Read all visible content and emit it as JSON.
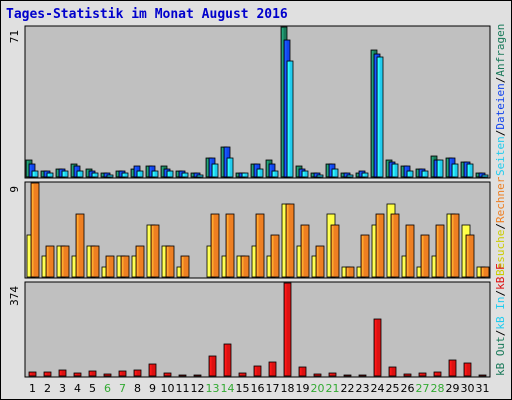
{
  "title": "Tages-Statistik im Monat August 2016",
  "colors": {
    "title": "#0000cc",
    "background": "#e0e0e0",
    "plot_background": "#c0c0c0",
    "border": "#000000",
    "weekend_day": "#33aa33",
    "weekday": "#000000",
    "anfragen": "#1a7a5a",
    "dateien": "#1144ee",
    "seiten": "#22ccee",
    "rechner": "#ee7f22",
    "besuche": "#ffff44",
    "kb": "#dd1111"
  },
  "chart_data": [
    {
      "type": "bar",
      "panel": "top",
      "y_tick_label": "71",
      "ylim": [
        0,
        71
      ],
      "legend": {
        "anfragen": "Anfragen",
        "slash1": "/",
        "dateien": "Dateien",
        "slash2": "/",
        "seiten": "Seiten"
      },
      "categories": [
        "1",
        "2",
        "3",
        "4",
        "5",
        "6",
        "7",
        "8",
        "9",
        "10",
        "11",
        "12",
        "13",
        "14",
        "15",
        "16",
        "17",
        "18",
        "19",
        "20",
        "21",
        "22",
        "23",
        "24",
        "25",
        "26",
        "27",
        "28",
        "29",
        "30",
        "31"
      ],
      "series": [
        {
          "name": "Anfragen",
          "key": "anfragen",
          "values": [
            8,
            3,
            4,
            6,
            4,
            2,
            3,
            4,
            5,
            5,
            3,
            2,
            9,
            14,
            2,
            6,
            8,
            71,
            5,
            2,
            6,
            2,
            2,
            60,
            8,
            5,
            4,
            10,
            9,
            7,
            2
          ]
        },
        {
          "name": "Dateien",
          "key": "dateien",
          "values": [
            6,
            3,
            4,
            5,
            3,
            2,
            3,
            5,
            5,
            4,
            3,
            2,
            9,
            14,
            2,
            6,
            6,
            65,
            4,
            2,
            6,
            2,
            3,
            58,
            7,
            5,
            4,
            8,
            9,
            7,
            2
          ]
        },
        {
          "name": "Seiten",
          "key": "seiten",
          "values": [
            3,
            2,
            3,
            3,
            2,
            1,
            2,
            3,
            3,
            3,
            2,
            1,
            6,
            9,
            2,
            4,
            3,
            55,
            3,
            1,
            4,
            1,
            2,
            57,
            6,
            3,
            3,
            8,
            6,
            6,
            1
          ]
        }
      ]
    },
    {
      "type": "bar",
      "panel": "middle",
      "y_tick_label": "9",
      "ylim": [
        0,
        9
      ],
      "legend": {
        "rechner": "Rechner",
        "slash1": "/",
        "besuche": "Besuche"
      },
      "categories": [
        "1",
        "2",
        "3",
        "4",
        "5",
        "6",
        "7",
        "8",
        "9",
        "10",
        "11",
        "12",
        "13",
        "14",
        "15",
        "16",
        "17",
        "18",
        "19",
        "20",
        "21",
        "22",
        "23",
        "24",
        "25",
        "26",
        "27",
        "28",
        "29",
        "30",
        "31"
      ],
      "series": [
        {
          "name": "Besuche",
          "key": "besuche",
          "values": [
            4,
            2,
            3,
            2,
            3,
            1,
            2,
            2,
            5,
            3,
            1,
            0,
            3,
            2,
            2,
            3,
            2,
            7,
            3,
            2,
            6,
            1,
            1,
            5,
            7,
            2,
            1,
            2,
            6,
            5,
            1
          ]
        },
        {
          "name": "Rechner",
          "key": "rechner",
          "values": [
            9,
            3,
            3,
            6,
            3,
            2,
            2,
            3,
            5,
            3,
            2,
            0,
            6,
            6,
            2,
            6,
            4,
            7,
            5,
            3,
            5,
            1,
            4,
            6,
            6,
            5,
            4,
            5,
            6,
            4,
            1
          ]
        }
      ]
    },
    {
      "type": "bar",
      "panel": "bottom",
      "y_tick_label": "374",
      "ylim": [
        0,
        374
      ],
      "legend": {
        "kb_f": "kB F",
        "slash1": "/",
        "kb_in": "kB In",
        "slash2": "/",
        "kb_out": "kB Out"
      },
      "categories": [
        "1",
        "2",
        "3",
        "4",
        "5",
        "6",
        "7",
        "8",
        "9",
        "10",
        "11",
        "12",
        "13",
        "14",
        "15",
        "16",
        "17",
        "18",
        "19",
        "20",
        "21",
        "22",
        "23",
        "24",
        "25",
        "26",
        "27",
        "28",
        "29",
        "30",
        "31"
      ],
      "series": [
        {
          "name": "kB F",
          "key": "kb",
          "values": [
            18,
            16,
            25,
            14,
            20,
            8,
            22,
            25,
            50,
            12,
            6,
            2,
            82,
            128,
            14,
            40,
            58,
            374,
            36,
            8,
            14,
            4,
            6,
            230,
            35,
            10,
            12,
            18,
            66,
            52,
            6
          ]
        }
      ]
    }
  ],
  "x_labels": {
    "days": [
      "1",
      "2",
      "3",
      "4",
      "5",
      "6",
      "7",
      "8",
      "9",
      "10",
      "11",
      "12",
      "13",
      "14",
      "15",
      "16",
      "17",
      "18",
      "19",
      "20",
      "21",
      "22",
      "23",
      "24",
      "25",
      "26",
      "27",
      "28",
      "29",
      "30",
      "31"
    ],
    "weekend_days": [
      "6",
      "7",
      "13",
      "14",
      "20",
      "21",
      "27",
      "28"
    ]
  }
}
